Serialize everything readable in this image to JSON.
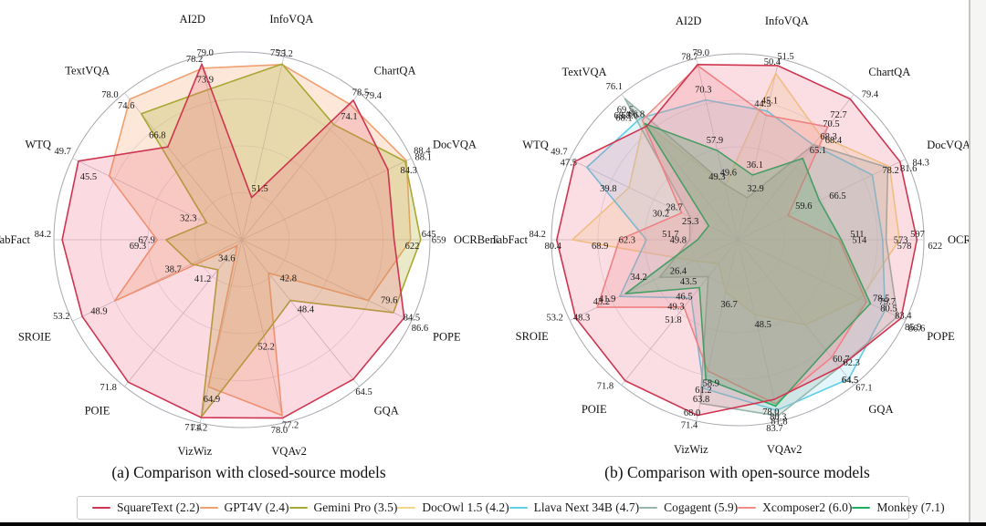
{
  "captions": {
    "a": "(a) Comparison with closed-source models",
    "b": "(b) Comparison with open-source models"
  },
  "legend": [
    {
      "label": "SquareText (2.2)",
      "color": "#cf3550"
    },
    {
      "label": "GPT4V (2.4)",
      "color": "#f0a070"
    },
    {
      "label": "Gemini Pro (3.5)",
      "color": "#a8a832"
    },
    {
      "label": "DocOwl 1.5 (4.2)",
      "color": "#f2d788"
    },
    {
      "label": "Llava Next 34B (4.7)",
      "color": "#5fcfe9"
    },
    {
      "label": "Cogagent (5.9)",
      "color": "#99b7ac"
    },
    {
      "label": "Xcomposer2 (6.0)",
      "color": "#ef8d87"
    },
    {
      "label": "Monkey (7.1)",
      "color": "#1fae60"
    }
  ],
  "chart_data": [
    {
      "type": "radar",
      "title": "(a) Comparison with closed-source models",
      "axes": [
        "AI2D",
        "InfoVQA",
        "ChartQA",
        "DocVQA",
        "OCRBench",
        "POPE",
        "GQA",
        "VQAv2",
        "VizWiz",
        "POIE",
        "SROIE",
        "TabFact",
        "WTQ",
        "TextVQA"
      ],
      "axis_ranges": [
        [
          44,
          80.5
        ],
        [
          44,
          76.5
        ],
        [
          49,
          81
        ],
        [
          52,
          89.5
        ],
        [
          410,
          672
        ],
        [
          55,
          88
        ],
        [
          36,
          66
        ],
        [
          22,
          79.5
        ],
        [
          34,
          72.5
        ],
        [
          33,
          73
        ],
        [
          32,
          54.5
        ],
        [
          56,
          85.5
        ],
        [
          27.5,
          50.5
        ],
        [
          45,
          79.5
        ]
      ],
      "grid": true,
      "legend_position": "bottom",
      "series": [
        {
          "name": "GPT4V",
          "color": "#f0a070",
          "fill": "#f4a873",
          "fill_opacity": 0.28,
          "values": [
            78.2,
            75.1,
            78.5,
            88.4,
            645,
            79.6,
            42.8,
            77.2,
            64.9,
            34.6,
            48.9,
            69.3,
            45.5,
            78.0
          ],
          "labels": [
            "78.2",
            "75.1",
            "78.5",
            "88.4",
            "645",
            "79.6",
            "42.8",
            "77.2",
            "64.9",
            "34.6",
            "48.9",
            "69.3",
            "45.5",
            "78.0"
          ]
        },
        {
          "name": "Gemini Pro",
          "color": "#a8a832",
          "fill": "#b8b84a",
          "fill_opacity": 0.3,
          "values": [
            73.9,
            75.2,
            74.1,
            88.1,
            659,
            84.5,
            48.4,
            52.2,
            71.2,
            41.2,
            38.7,
            67.9,
            32.3,
            74.6
          ],
          "labels": [
            "73.9",
            "75.2",
            "74.1",
            "88.1",
            "659",
            "84.5",
            "48.4",
            "52.2",
            "71.2",
            "41.2",
            "38.7",
            "67.9",
            "32.3",
            "74.6"
          ]
        },
        {
          "name": "SquareText",
          "color": "#cf3550",
          "fill": "#ed5c77",
          "fill_opacity": 0.22,
          "values": [
            79.0,
            51.5,
            79.4,
            84.3,
            622,
            86.6,
            64.5,
            78.0,
            71.4,
            71.8,
            53.2,
            84.2,
            49.7,
            66.8
          ],
          "labels": [
            "79.0",
            "51.5",
            "79.4",
            "84.3",
            "622",
            "86.6",
            "64.5",
            "78.0",
            "71.4",
            "71.8",
            "53.2",
            "84.2",
            "49.7",
            "66.8"
          ]
        }
      ]
    },
    {
      "type": "radar",
      "title": "(b) Comparison with open-source models",
      "axes": [
        "AI2D",
        "InfoVQA",
        "ChartQA",
        "DocVQA",
        "OCRBench",
        "POPE",
        "GQA",
        "VQAv2",
        "VizWiz",
        "POIE",
        "SROIE",
        "TabFact",
        "WTQ",
        "TextVQA"
      ],
      "axis_ranges": [
        [
          36,
          80.5
        ],
        [
          27,
          52.5
        ],
        [
          45.5,
          80.5
        ],
        [
          48.5,
          85.5
        ],
        [
          366,
          632
        ],
        [
          54,
          87.5
        ],
        [
          36,
          68.5
        ],
        [
          22.5,
          85.5
        ],
        [
          22,
          73
        ],
        [
          33.5,
          73
        ],
        [
          16.5,
          54.5
        ],
        [
          40,
          85.5
        ],
        [
          20,
          50.6
        ],
        [
          28.5,
          77.5
        ]
      ],
      "grid": true,
      "legend_position": "bottom",
      "series": [
        {
          "name": "DocOwl 1.5",
          "color": "#f2d788",
          "fill": "#f6e1a0",
          "fill_opacity": 0.3,
          "values": [
            49.3,
            50.4,
            70.5,
            82.0,
            597,
            78.5,
            55.0,
            48.5,
            36.7,
            40.0,
            26.4,
            80.4,
            39.8,
            68.1
          ],
          "labels": [
            "49.3",
            "50.4",
            "70.5",
            null,
            "597",
            "78.5",
            null,
            "48.5",
            "36.7",
            null,
            "26.4",
            "80.4",
            "39.8",
            "68.1"
          ]
        },
        {
          "name": "Llava Next 34B",
          "color": "#5fcfe9",
          "fill": "#8fdcf0",
          "fill_opacity": 0.25,
          "values": [
            70.3,
            45.1,
            68.3,
            78.2,
            573,
            83.4,
            67.1,
            81.8,
            63.8,
            49.3,
            43.2,
            62.3,
            47.5,
            69.5
          ],
          "labels": [
            "70.3",
            "45.1",
            "68.3",
            "78.2",
            "573",
            "83.4",
            "67.1",
            "81.8",
            "63.8",
            "49.3",
            "43.2",
            "62.3",
            "47.5",
            "69.5"
          ]
        },
        {
          "name": "Cogagent",
          "color": "#99b7ac",
          "fill": "#a9c2b7",
          "fill_opacity": 0.32,
          "values": [
            49.6,
            32.9,
            68.4,
            81.6,
            578,
            85.9,
            64.5,
            83.7,
            68.0,
            43.5,
            34.2,
            51.7,
            28.7,
            76.1
          ],
          "labels": [
            "49.6",
            "32.9",
            "68.4",
            "81.6",
            "578",
            "85.9",
            "64.5",
            "83.7",
            "68.0",
            "43.5",
            "34.2",
            "51.7",
            "28.7",
            "76.1"
          ]
        },
        {
          "name": "Xcomposer2",
          "color": "#ef8d87",
          "fill": "#f2a19c",
          "fill_opacity": 0.25,
          "values": [
            78.7,
            44.5,
            72.7,
            59.6,
            511,
            79.7,
            62.3,
            79.5,
            58.9,
            51.8,
            48.3,
            68.9,
            30.2,
            68.8
          ],
          "labels": [
            "78.7",
            "44.5",
            "72.7",
            "59.6",
            "511",
            "79.7",
            "62.3",
            null,
            "58.9",
            "51.8",
            "48.3",
            "68.9",
            "30.2",
            "68.8"
          ]
        },
        {
          "name": "Monkey",
          "color": "#1fae60",
          "fill": "#3dbd77",
          "fill_opacity": 0.33,
          "values": [
            57.9,
            36.1,
            65.1,
            66.5,
            514,
            80.5,
            60.7,
            80.3,
            61.2,
            46.5,
            41.9,
            49.8,
            25.3,
            67.6
          ],
          "labels": [
            "57.9",
            "36.1",
            "65.1",
            "66.5",
            "514",
            "80.5",
            "60.7",
            "80.3",
            "61.2",
            "46.5",
            "41.9",
            "49.8",
            "25.3",
            "67.6"
          ]
        },
        {
          "name": "SquareText",
          "color": "#cf3550",
          "fill": "#ed5c77",
          "fill_opacity": 0.2,
          "values": [
            79.0,
            51.5,
            79.4,
            84.3,
            622,
            86.6,
            64.5,
            78.0,
            71.4,
            71.8,
            53.2,
            84.2,
            49.7,
            66.8
          ],
          "labels": [
            "79.0",
            "51.5",
            "79.4",
            "84.3",
            "622",
            "86.6",
            "64.5",
            "78.0",
            "71.4",
            "71.8",
            "53.2",
            "84.2",
            "49.7",
            "66.8"
          ]
        }
      ]
    }
  ]
}
